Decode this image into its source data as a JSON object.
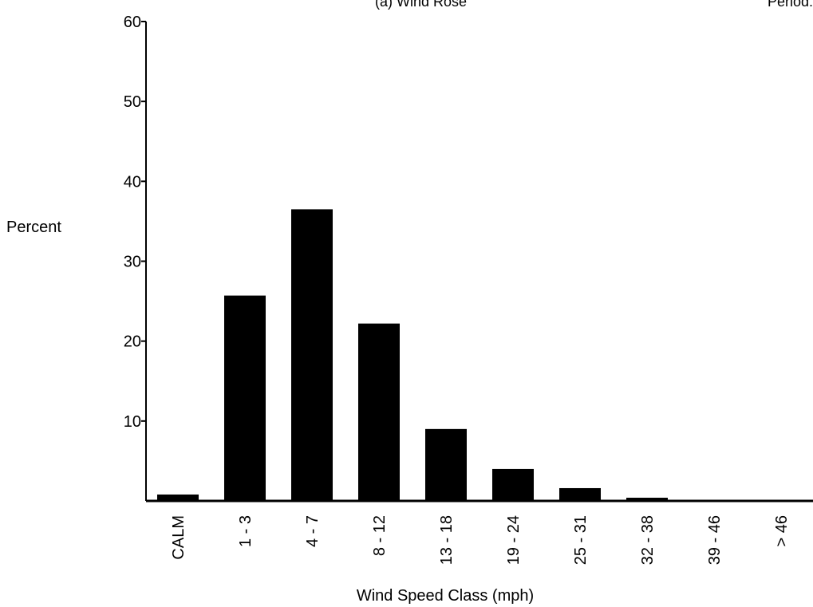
{
  "header": {
    "left_text": "(a)  Wind Rose",
    "right_text": "Period:"
  },
  "chart_data": {
    "type": "bar",
    "categories": [
      "CALM",
      "1 - 3",
      "4 - 7",
      "8 - 12",
      "13 - 18",
      "19 - 24",
      "25 - 31",
      "32 - 38",
      "39 - 46",
      "> 46"
    ],
    "values": [
      0.8,
      25.7,
      36.5,
      22.2,
      9.0,
      4.0,
      1.6,
      0.4,
      0.1,
      0.1
    ],
    "xlabel": "Wind Speed Class (mph)",
    "ylabel": "Percent",
    "ylim": [
      0,
      60
    ],
    "yticks": [
      "10",
      "20",
      "30",
      "40",
      "50",
      "60"
    ],
    "grid": false,
    "bar_color": "#000000"
  }
}
